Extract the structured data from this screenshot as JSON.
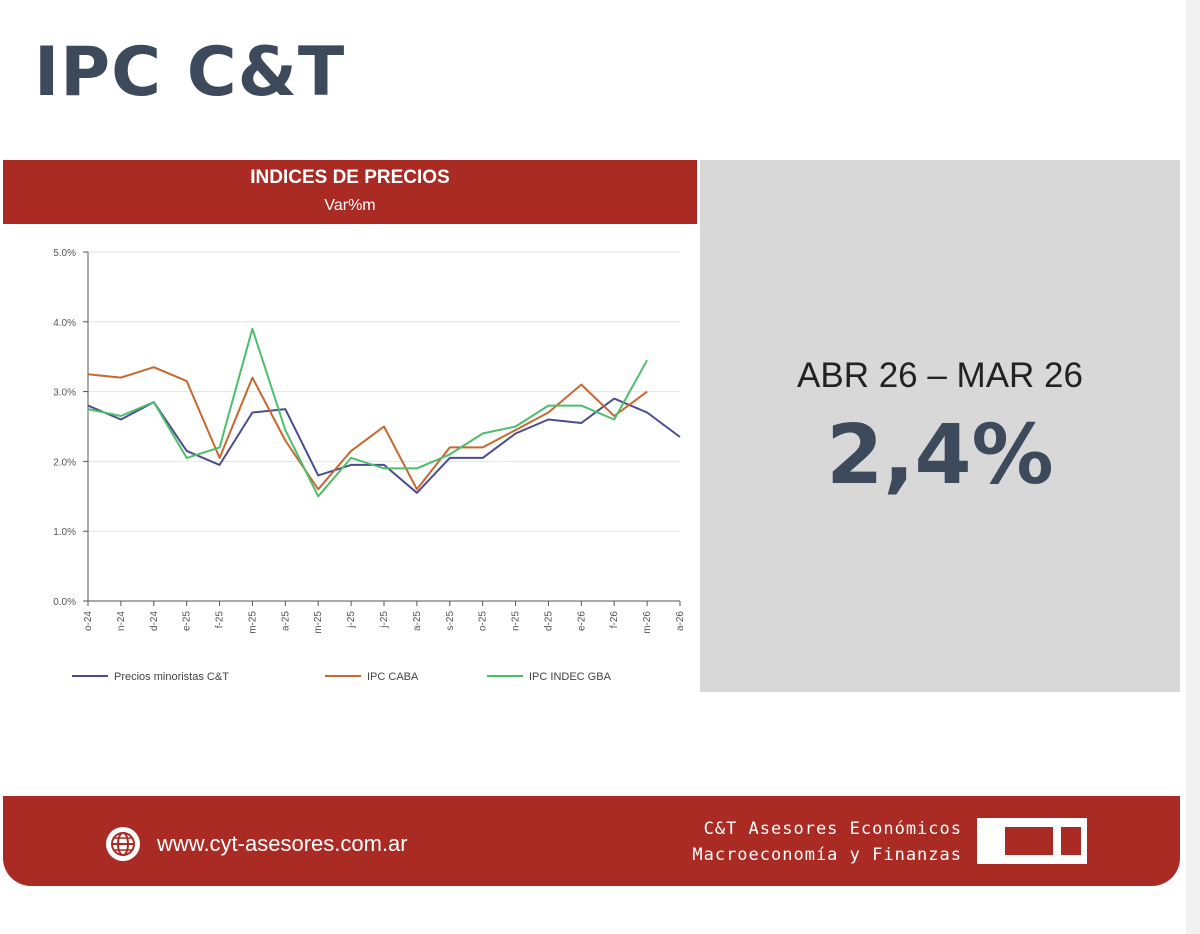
{
  "page": {
    "title": "IPC C&T"
  },
  "chart_header": {
    "title": "INDICES DE PRECIOS",
    "subtitle": "Var%m"
  },
  "stat": {
    "period": "ABR 26 – MAR 26",
    "value": "2,4%"
  },
  "footer": {
    "url": "www.cyt-asesores.com.ar",
    "company_line1": "C&T Asesores Económicos",
    "company_line2": "Macroeconomía y Finanzas"
  },
  "colors": {
    "brand_red": "#a92b24",
    "title_slate": "#3d4a5c",
    "panel_gray": "#d8d8d8",
    "series_ct": "#4a4d8f",
    "series_caba": "#c8672f",
    "series_indec": "#4cbf6a"
  },
  "chart_data": {
    "type": "line",
    "title": "INDICES DE PRECIOS",
    "subtitle": "Var%m",
    "ylim": [
      0,
      5
    ],
    "yticks": [
      "0.0%",
      "1.0%",
      "2.0%",
      "3.0%",
      "4.0%",
      "5.0%"
    ],
    "ytick_values": [
      0,
      1,
      2,
      3,
      4,
      5
    ],
    "categories": [
      "o-24",
      "n-24",
      "d-24",
      "e-25",
      "f-25",
      "m-25",
      "a-25",
      "m-25",
      "j-25",
      "j-25",
      "a-25",
      "s-25",
      "o-25",
      "n-25",
      "d-25",
      "e-26",
      "f-26",
      "m-26",
      "a-26"
    ],
    "grid": true,
    "legend": "bottom",
    "series": [
      {
        "name": "Precios minoristas C&T",
        "color": "#4a4d8f",
        "values": [
          2.8,
          2.6,
          2.85,
          2.15,
          1.95,
          2.7,
          2.75,
          1.8,
          1.95,
          1.95,
          1.55,
          2.05,
          2.05,
          2.4,
          2.6,
          2.55,
          2.9,
          2.7,
          2.35
        ]
      },
      {
        "name": "IPC CABA",
        "color": "#c8672f",
        "values": [
          3.25,
          3.2,
          3.35,
          3.15,
          2.05,
          3.2,
          2.3,
          1.6,
          2.15,
          2.5,
          1.6,
          2.2,
          2.2,
          2.45,
          2.7,
          3.1,
          2.65,
          3.0,
          null
        ]
      },
      {
        "name": "IPC INDEC GBA",
        "color": "#4cbf6a",
        "values": [
          2.75,
          2.65,
          2.85,
          2.05,
          2.2,
          3.9,
          2.45,
          1.5,
          2.05,
          1.9,
          1.9,
          2.1,
          2.4,
          2.5,
          2.8,
          2.8,
          2.6,
          3.45,
          null
        ]
      }
    ]
  }
}
